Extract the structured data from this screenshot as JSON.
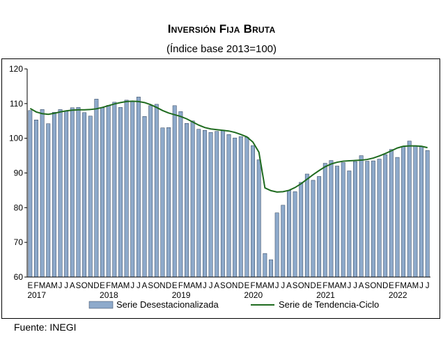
{
  "title": "Inversión Fija Bruta",
  "subtitle": "(Índice base 2013=100)",
  "source": "Fuente: INEGI",
  "chart_data": {
    "type": "bar",
    "title": "Inversión Fija Bruta",
    "subtitle": "(Índice base 2013=100)",
    "xlabel": "",
    "ylabel": "",
    "ylim": [
      60,
      120
    ],
    "yticks": [
      60,
      70,
      80,
      90,
      100,
      110,
      120
    ],
    "grid": false,
    "legend_position": "bottom",
    "month_labels": [
      "E",
      "F",
      "M",
      "A",
      "M",
      "J",
      "J",
      "A",
      "S",
      "O",
      "N",
      "D",
      "E",
      "F",
      "M",
      "A",
      "M",
      "J",
      "J",
      "A",
      "S",
      "O",
      "N",
      "D",
      "E",
      "F",
      "M",
      "A",
      "M",
      "J",
      "J",
      "A",
      "S",
      "O",
      "N",
      "D",
      "E",
      "F",
      "M",
      "A",
      "M",
      "J",
      "J",
      "A",
      "S",
      "O",
      "N",
      "D",
      "E",
      "F",
      "M",
      "A",
      "M",
      "J",
      "J",
      "A",
      "S",
      "O",
      "N",
      "D",
      "E",
      "F",
      "M",
      "A",
      "M",
      "J",
      "J"
    ],
    "year_labels": [
      {
        "label": "2017",
        "index": 0
      },
      {
        "label": "2018",
        "index": 12
      },
      {
        "label": "2019",
        "index": 24
      },
      {
        "label": "2020",
        "index": 36
      },
      {
        "label": "2021",
        "index": 48
      },
      {
        "label": "2022",
        "index": 60
      }
    ],
    "series": [
      {
        "name": "Serie Desestacionalizada",
        "type": "bar",
        "color": "#8eaacb",
        "values": [
          108.0,
          105.3,
          108.3,
          104.2,
          107.5,
          108.3,
          107.8,
          108.8,
          108.9,
          107.4,
          106.4,
          111.3,
          108.8,
          109.5,
          110.4,
          108.9,
          111.0,
          110.7,
          111.9,
          106.3,
          109.4,
          109.8,
          103.0,
          103.1,
          109.4,
          107.7,
          104.3,
          105.0,
          102.6,
          102.3,
          101.7,
          102.0,
          102.4,
          101.1,
          100.1,
          100.5,
          100.3,
          97.9,
          93.8,
          66.8,
          65.0,
          78.5,
          80.7,
          85.0,
          84.6,
          87.3,
          89.7,
          87.9,
          89.0,
          92.8,
          93.6,
          92.0,
          93.0,
          90.6,
          93.3,
          95.0,
          93.4,
          93.5,
          94.0,
          95.3,
          96.8,
          94.5,
          97.7,
          99.2,
          97.9,
          97.6,
          96.5
        ]
      },
      {
        "name": "Serie de Tendencia-Ciclo",
        "type": "line",
        "color": "#1f6b1f",
        "values": [
          108.6,
          107.6,
          107.1,
          106.9,
          107.2,
          107.6,
          107.9,
          108.1,
          108.2,
          108.2,
          108.3,
          108.5,
          108.9,
          109.4,
          109.9,
          110.3,
          110.6,
          110.7,
          110.6,
          110.3,
          109.7,
          108.9,
          108.0,
          107.3,
          106.8,
          106.3,
          105.6,
          104.7,
          103.8,
          103.1,
          102.7,
          102.5,
          102.3,
          102.1,
          101.7,
          101.1,
          100.4,
          98.9,
          96.0,
          85.7,
          84.9,
          84.5,
          84.6,
          85.0,
          85.8,
          86.9,
          88.2,
          89.5,
          90.7,
          91.8,
          92.6,
          93.1,
          93.4,
          93.5,
          93.6,
          93.7,
          93.9,
          94.3,
          94.9,
          95.6,
          96.4,
          97.2,
          97.7,
          97.8,
          97.8,
          97.7,
          97.3
        ]
      }
    ]
  }
}
